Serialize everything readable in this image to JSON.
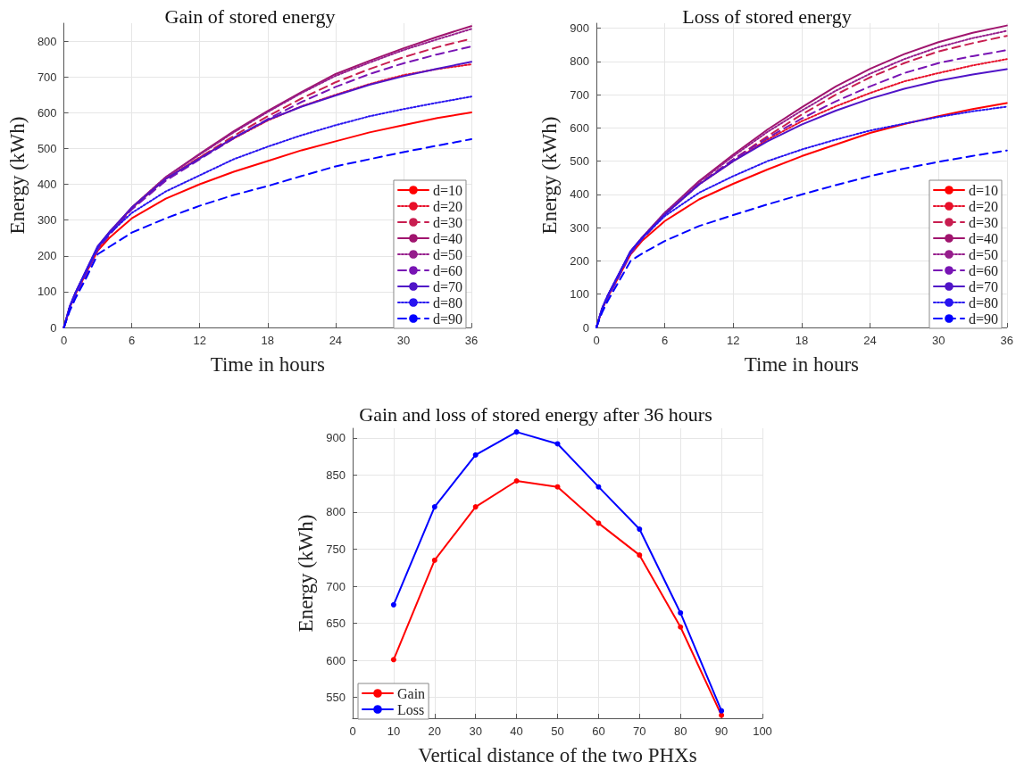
{
  "chart_data": [
    {
      "type": "line",
      "title": "Gain of stored energy",
      "xlabel": "Time in hours",
      "ylabel": "Energy (kWh)",
      "x": [
        0,
        0.5,
        1,
        2,
        3,
        4,
        6,
        9,
        12,
        15,
        18,
        21,
        24,
        27,
        30,
        33,
        36
      ],
      "xlim": [
        0,
        36
      ],
      "xticks": [
        0,
        6,
        12,
        18,
        24,
        30,
        36
      ],
      "ylim": [
        0,
        850
      ],
      "yticks": [
        0,
        100,
        200,
        300,
        400,
        500,
        600,
        700,
        800
      ],
      "grid": true,
      "legend": "bottom right",
      "marker": "none",
      "series": [
        {
          "name": "d=10",
          "color": "#ff0000",
          "line_style": "solid",
          "values": [
            0,
            55,
            92,
            155,
            215,
            250,
            305,
            360,
            400,
            435,
            465,
            495,
            520,
            545,
            565,
            585,
            601
          ]
        },
        {
          "name": "d=20",
          "color": "#e8102a",
          "line_style": "dotted",
          "values": [
            0,
            55,
            92,
            155,
            220,
            262,
            333,
            415,
            475,
            528,
            578,
            618,
            650,
            680,
            705,
            722,
            735
          ]
        },
        {
          "name": "d=30",
          "color": "#c81e50",
          "line_style": "dashed",
          "values": [
            0,
            50,
            88,
            150,
            218,
            260,
            333,
            415,
            475,
            535,
            590,
            640,
            685,
            722,
            755,
            783,
            807
          ]
        },
        {
          "name": "d=40",
          "color": "#a0146e",
          "line_style": "solid",
          "values": [
            0,
            55,
            95,
            160,
            225,
            265,
            335,
            420,
            485,
            548,
            605,
            658,
            708,
            745,
            780,
            812,
            842
          ]
        },
        {
          "name": "d=50",
          "color": "#961e8c",
          "line_style": "dotted",
          "values": [
            0,
            55,
            95,
            160,
            225,
            265,
            335,
            420,
            483,
            545,
            602,
            655,
            703,
            740,
            775,
            805,
            834
          ]
        },
        {
          "name": "d=60",
          "color": "#7814b4",
          "line_style": "dashed",
          "values": [
            0,
            50,
            88,
            150,
            218,
            258,
            330,
            410,
            470,
            528,
            582,
            630,
            672,
            708,
            738,
            763,
            785
          ]
        },
        {
          "name": "d=70",
          "color": "#5014c8",
          "line_style": "solid",
          "values": [
            0,
            58,
            96,
            162,
            228,
            266,
            335,
            415,
            472,
            530,
            580,
            617,
            648,
            678,
            702,
            723,
            742
          ]
        },
        {
          "name": "d=80",
          "color": "#2814f0",
          "line_style": "dotted",
          "values": [
            0,
            57,
            95,
            160,
            225,
            262,
            320,
            380,
            425,
            470,
            505,
            537,
            565,
            590,
            610,
            628,
            645
          ]
        },
        {
          "name": "d=90",
          "color": "#0000ff",
          "line_style": "dashed",
          "values": [
            0,
            45,
            80,
            140,
            205,
            225,
            265,
            305,
            340,
            370,
            395,
            423,
            450,
            470,
            490,
            508,
            526
          ]
        }
      ]
    },
    {
      "type": "line",
      "title": "Loss of stored energy",
      "xlabel": "Time in hours",
      "ylabel": "Energy (kWh)",
      "x": [
        0,
        0.5,
        1,
        2,
        3,
        4,
        6,
        9,
        12,
        15,
        18,
        21,
        24,
        27,
        30,
        33,
        36
      ],
      "xlim": [
        0,
        36
      ],
      "xticks": [
        0,
        6,
        12,
        18,
        24,
        30,
        36
      ],
      "ylim": [
        0,
        915
      ],
      "yticks": [
        0,
        100,
        200,
        300,
        400,
        500,
        600,
        700,
        800,
        900
      ],
      "grid": true,
      "legend": "bottom right",
      "marker": "none",
      "series": [
        {
          "name": "d=10",
          "color": "#ff0000",
          "line_style": "solid",
          "values": [
            0,
            55,
            92,
            155,
            220,
            260,
            320,
            385,
            432,
            475,
            515,
            550,
            585,
            612,
            635,
            657,
            675
          ]
        },
        {
          "name": "d=20",
          "color": "#e8102a",
          "line_style": "dotted",
          "values": [
            0,
            55,
            95,
            160,
            225,
            268,
            340,
            430,
            500,
            565,
            620,
            665,
            705,
            740,
            765,
            788,
            807
          ]
        },
        {
          "name": "d=30",
          "color": "#c81e50",
          "line_style": "dashed",
          "values": [
            0,
            50,
            90,
            155,
            222,
            265,
            340,
            432,
            505,
            575,
            640,
            700,
            752,
            795,
            830,
            855,
            877
          ]
        },
        {
          "name": "d=40",
          "color": "#a0146e",
          "line_style": "solid",
          "values": [
            0,
            55,
            95,
            162,
            228,
            270,
            345,
            440,
            520,
            595,
            662,
            725,
            778,
            822,
            858,
            886,
            908
          ]
        },
        {
          "name": "d=50",
          "color": "#961e8c",
          "line_style": "dotted",
          "values": [
            0,
            55,
            95,
            162,
            228,
            270,
            345,
            437,
            515,
            588,
            652,
            712,
            763,
            807,
            843,
            870,
            892
          ]
        },
        {
          "name": "d=60",
          "color": "#7814b4",
          "line_style": "dashed",
          "values": [
            0,
            50,
            90,
            155,
            222,
            265,
            340,
            430,
            505,
            570,
            628,
            680,
            725,
            765,
            795,
            816,
            834
          ]
        },
        {
          "name": "d=70",
          "color": "#5014c8",
          "line_style": "solid",
          "values": [
            0,
            58,
            97,
            163,
            230,
            270,
            340,
            430,
            500,
            560,
            610,
            652,
            688,
            718,
            742,
            761,
            777
          ]
        },
        {
          "name": "d=80",
          "color": "#2814f0",
          "line_style": "dotted",
          "values": [
            0,
            57,
            96,
            162,
            228,
            268,
            335,
            405,
            455,
            500,
            535,
            565,
            592,
            613,
            633,
            650,
            664
          ]
        },
        {
          "name": "d=90",
          "color": "#0000ff",
          "line_style": "dashed",
          "values": [
            0,
            45,
            80,
            140,
            200,
            222,
            260,
            305,
            338,
            370,
            400,
            428,
            455,
            478,
            498,
            516,
            532
          ]
        }
      ]
    },
    {
      "type": "line",
      "title": "Gain and loss of stored energy after 36 hours",
      "xlabel": "Vertical distance of the two PHXs",
      "ylabel": "Energy (kWh)",
      "x": [
        10,
        20,
        30,
        40,
        50,
        60,
        70,
        80,
        90
      ],
      "xlim": [
        0,
        100
      ],
      "xticks": [
        0,
        10,
        20,
        30,
        40,
        50,
        60,
        70,
        80,
        90,
        100
      ],
      "ylim": [
        522,
        913
      ],
      "yticks": [
        550,
        600,
        650,
        700,
        750,
        800,
        850,
        900
      ],
      "grid": true,
      "legend": "bottom left",
      "marker": "circle",
      "series": [
        {
          "name": "Gain",
          "color": "#ff0000",
          "line_style": "solid",
          "values": [
            601,
            735,
            807,
            842,
            834,
            785,
            742,
            645,
            526
          ]
        },
        {
          "name": "Loss",
          "color": "#0000ff",
          "line_style": "solid",
          "values": [
            675,
            807,
            877,
            908,
            892,
            834,
            777,
            664,
            532
          ]
        }
      ]
    }
  ]
}
